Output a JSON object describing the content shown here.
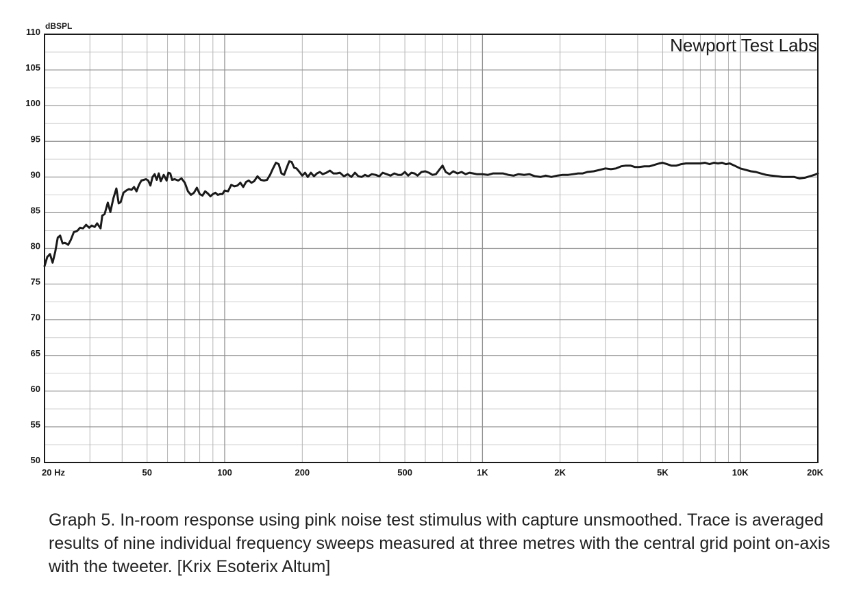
{
  "chart_data": {
    "type": "line",
    "ylabel": "dBSPL",
    "watermark": "Newport Test Labs",
    "x_scale": "log",
    "xlim": [
      20,
      20000
    ],
    "ylim": [
      50,
      110
    ],
    "grid": true,
    "x_ticks": [
      {
        "value": 20,
        "label": "20  Hz"
      },
      {
        "value": 50,
        "label": "50"
      },
      {
        "value": 100,
        "label": "100"
      },
      {
        "value": 200,
        "label": "200"
      },
      {
        "value": 500,
        "label": "500"
      },
      {
        "value": 1000,
        "label": "1K"
      },
      {
        "value": 2000,
        "label": "2K"
      },
      {
        "value": 5000,
        "label": "5K"
      },
      {
        "value": 10000,
        "label": "10K"
      },
      {
        "value": 20000,
        "label": "20K"
      }
    ],
    "y_ticks": [
      110,
      105,
      100,
      95,
      90,
      85,
      80,
      75,
      70,
      65,
      60,
      55,
      50
    ],
    "series": [
      {
        "color": "#1a1a1a",
        "points": [
          [
            20,
            77.5
          ],
          [
            20.5,
            78.8
          ],
          [
            21,
            79.2
          ],
          [
            21.5,
            78.0
          ],
          [
            22,
            79.5
          ],
          [
            22.5,
            81.5
          ],
          [
            23,
            81.8
          ],
          [
            23.5,
            80.7
          ],
          [
            24,
            80.8
          ],
          [
            24.7,
            80.5
          ],
          [
            25.3,
            81.2
          ],
          [
            26,
            82.3
          ],
          [
            26.7,
            82.4
          ],
          [
            27.5,
            82.9
          ],
          [
            28.2,
            82.8
          ],
          [
            29,
            83.3
          ],
          [
            29.8,
            82.9
          ],
          [
            30.5,
            83.2
          ],
          [
            31.3,
            83.0
          ],
          [
            32,
            83.5
          ],
          [
            33,
            82.8
          ],
          [
            33.5,
            84.6
          ],
          [
            34.2,
            84.8
          ],
          [
            35.2,
            86.4
          ],
          [
            36,
            85.1
          ],
          [
            37,
            87.0
          ],
          [
            38,
            88.4
          ],
          [
            38.8,
            86.3
          ],
          [
            39.5,
            86.5
          ],
          [
            40.5,
            87.8
          ],
          [
            41.5,
            88.1
          ],
          [
            42.5,
            88.3
          ],
          [
            43.5,
            88.2
          ],
          [
            44.5,
            88.6
          ],
          [
            45.5,
            88.0
          ],
          [
            46.5,
            88.9
          ],
          [
            47.5,
            89.5
          ],
          [
            48.5,
            89.6
          ],
          [
            49.5,
            89.7
          ],
          [
            50.5,
            89.5
          ],
          [
            51.5,
            88.8
          ],
          [
            52.5,
            90.0
          ],
          [
            53.5,
            90.4
          ],
          [
            54.5,
            89.6
          ],
          [
            55.5,
            90.5
          ],
          [
            56.5,
            89.4
          ],
          [
            58,
            90.3
          ],
          [
            59.5,
            89.5
          ],
          [
            60.5,
            90.6
          ],
          [
            61.5,
            90.5
          ],
          [
            62.5,
            89.6
          ],
          [
            64,
            89.7
          ],
          [
            66,
            89.5
          ],
          [
            68,
            89.8
          ],
          [
            70,
            89.2
          ],
          [
            72,
            88.0
          ],
          [
            74,
            87.5
          ],
          [
            76,
            87.8
          ],
          [
            78,
            88.5
          ],
          [
            80,
            87.6
          ],
          [
            82,
            87.4
          ],
          [
            84,
            88.0
          ],
          [
            86,
            87.7
          ],
          [
            88,
            87.3
          ],
          [
            90,
            87.6
          ],
          [
            92,
            87.8
          ],
          [
            94,
            87.5
          ],
          [
            96,
            87.6
          ],
          [
            98,
            87.6
          ],
          [
            100,
            88.1
          ],
          [
            103,
            88.0
          ],
          [
            106,
            88.9
          ],
          [
            109,
            88.7
          ],
          [
            112,
            88.8
          ],
          [
            115,
            89.2
          ],
          [
            118,
            88.6
          ],
          [
            121,
            89.3
          ],
          [
            124,
            89.5
          ],
          [
            127,
            89.2
          ],
          [
            130,
            89.4
          ],
          [
            134,
            90.1
          ],
          [
            138,
            89.6
          ],
          [
            142,
            89.5
          ],
          [
            146,
            89.6
          ],
          [
            150,
            90.3
          ],
          [
            154,
            91.2
          ],
          [
            158,
            92.0
          ],
          [
            162,
            91.8
          ],
          [
            166,
            90.5
          ],
          [
            170,
            90.3
          ],
          [
            174,
            91.3
          ],
          [
            178,
            92.2
          ],
          [
            182,
            92.1
          ],
          [
            186,
            91.3
          ],
          [
            190,
            91.2
          ],
          [
            195,
            90.7
          ],
          [
            200,
            90.2
          ],
          [
            205,
            90.6
          ],
          [
            210,
            90.0
          ],
          [
            216,
            90.6
          ],
          [
            222,
            90.1
          ],
          [
            228,
            90.5
          ],
          [
            234,
            90.7
          ],
          [
            240,
            90.4
          ],
          [
            248,
            90.6
          ],
          [
            256,
            90.9
          ],
          [
            264,
            90.5
          ],
          [
            272,
            90.5
          ],
          [
            280,
            90.6
          ],
          [
            290,
            90.1
          ],
          [
            300,
            90.4
          ],
          [
            310,
            90.0
          ],
          [
            320,
            90.6
          ],
          [
            330,
            90.1
          ],
          [
            340,
            90.0
          ],
          [
            350,
            90.3
          ],
          [
            360,
            90.1
          ],
          [
            372,
            90.4
          ],
          [
            385,
            90.3
          ],
          [
            398,
            90.1
          ],
          [
            410,
            90.6
          ],
          [
            425,
            90.4
          ],
          [
            440,
            90.2
          ],
          [
            455,
            90.5
          ],
          [
            470,
            90.3
          ],
          [
            485,
            90.3
          ],
          [
            500,
            90.7
          ],
          [
            515,
            90.2
          ],
          [
            530,
            90.6
          ],
          [
            545,
            90.5
          ],
          [
            560,
            90.2
          ],
          [
            580,
            90.7
          ],
          [
            600,
            90.8
          ],
          [
            620,
            90.6
          ],
          [
            640,
            90.3
          ],
          [
            660,
            90.4
          ],
          [
            680,
            91.0
          ],
          [
            700,
            91.6
          ],
          [
            720,
            90.7
          ],
          [
            745,
            90.4
          ],
          [
            770,
            90.8
          ],
          [
            800,
            90.5
          ],
          [
            830,
            90.7
          ],
          [
            860,
            90.4
          ],
          [
            890,
            90.6
          ],
          [
            920,
            90.5
          ],
          [
            950,
            90.4
          ],
          [
            1000,
            90.4
          ],
          [
            1050,
            90.3
          ],
          [
            1100,
            90.5
          ],
          [
            1150,
            90.5
          ],
          [
            1200,
            90.5
          ],
          [
            1260,
            90.3
          ],
          [
            1320,
            90.2
          ],
          [
            1380,
            90.4
          ],
          [
            1450,
            90.3
          ],
          [
            1520,
            90.4
          ],
          [
            1600,
            90.1
          ],
          [
            1680,
            90.0
          ],
          [
            1760,
            90.2
          ],
          [
            1850,
            90.0
          ],
          [
            1950,
            90.2
          ],
          [
            2050,
            90.3
          ],
          [
            2150,
            90.3
          ],
          [
            2250,
            90.4
          ],
          [
            2350,
            90.5
          ],
          [
            2450,
            90.5
          ],
          [
            2550,
            90.7
          ],
          [
            2700,
            90.8
          ],
          [
            2850,
            91.0
          ],
          [
            3000,
            91.2
          ],
          [
            3150,
            91.1
          ],
          [
            3300,
            91.2
          ],
          [
            3450,
            91.5
          ],
          [
            3600,
            91.6
          ],
          [
            3750,
            91.6
          ],
          [
            3900,
            91.4
          ],
          [
            4050,
            91.4
          ],
          [
            4250,
            91.5
          ],
          [
            4450,
            91.5
          ],
          [
            4650,
            91.7
          ],
          [
            4850,
            91.9
          ],
          [
            5000,
            92.0
          ],
          [
            5200,
            91.8
          ],
          [
            5400,
            91.6
          ],
          [
            5650,
            91.6
          ],
          [
            5900,
            91.8
          ],
          [
            6150,
            91.9
          ],
          [
            6400,
            91.9
          ],
          [
            6700,
            91.9
          ],
          [
            7000,
            91.9
          ],
          [
            7300,
            92.0
          ],
          [
            7600,
            91.8
          ],
          [
            7900,
            92.0
          ],
          [
            8200,
            91.9
          ],
          [
            8500,
            92.0
          ],
          [
            8800,
            91.8
          ],
          [
            9100,
            91.9
          ],
          [
            9500,
            91.6
          ],
          [
            10000,
            91.2
          ],
          [
            10500,
            91.0
          ],
          [
            11000,
            90.8
          ],
          [
            11500,
            90.7
          ],
          [
            12000,
            90.5
          ],
          [
            12600,
            90.3
          ],
          [
            13200,
            90.2
          ],
          [
            13900,
            90.1
          ],
          [
            14600,
            90.0
          ],
          [
            15400,
            90.0
          ],
          [
            16200,
            90.0
          ],
          [
            17000,
            89.8
          ],
          [
            17800,
            89.9
          ],
          [
            18600,
            90.1
          ],
          [
            19400,
            90.3
          ],
          [
            20000,
            90.5
          ]
        ]
      }
    ]
  },
  "caption": "Graph 5. In-room response using pink noise test stimulus with capture unsmoothed. Trace is averaged results of nine individual frequency sweeps measured at three metres with the central grid point on-axis with the tweeter. [Krix Esoterix Altum]"
}
